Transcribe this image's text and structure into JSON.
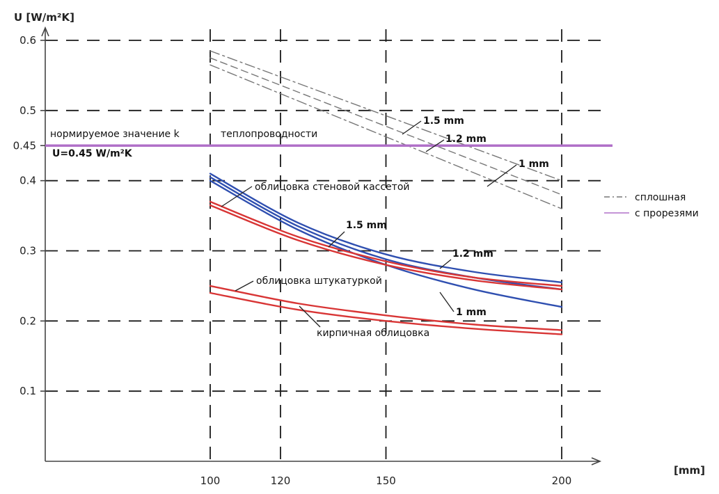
{
  "chart_data": {
    "type": "line",
    "title": "",
    "xlabel": "[mm]",
    "ylabel": "U [W/m²K]",
    "xlim": [
      0,
      200
    ],
    "ylim": [
      0,
      0.6
    ],
    "x_ticks": [
      100,
      120,
      150,
      200
    ],
    "y_ticks": [
      0.1,
      0.2,
      0.3,
      0.4,
      0.45,
      0.5,
      0.6
    ],
    "grid": true,
    "legend_position": "right",
    "legend": [
      {
        "label": "сплошная",
        "style": "dashed",
        "color": "#777777"
      },
      {
        "label": "с прорезями",
        "style": "solid",
        "color": "#b070c8"
      }
    ],
    "reference_line": {
      "y": 0.45,
      "color": "#b070c8",
      "label_top": "нормируемое значение k",
      "label_top_right": "теплопроводности",
      "label_bottom": "U=0.45 W/m²K"
    },
    "series": [
      {
        "x": [
          100,
          200
        ],
        "y": [
          0.585,
          0.4
        ],
        "color": "#777777",
        "dash": "14 5 3 5"
      },
      {
        "x": [
          100,
          200
        ],
        "y": [
          0.575,
          0.38
        ],
        "color": "#777777",
        "dash": "10 6"
      },
      {
        "x": [
          100,
          200
        ],
        "y": [
          0.565,
          0.36
        ],
        "color": "#777777",
        "dash": "14 5 3 5"
      },
      {
        "x": [
          100,
          125,
          150,
          175,
          200
        ],
        "y": [
          0.41,
          0.34,
          0.295,
          0.27,
          0.255
        ],
        "color": "#2f4fb0"
      },
      {
        "x": [
          100,
          125,
          150,
          175,
          200
        ],
        "y": [
          0.405,
          0.335,
          0.288,
          0.262,
          0.245
        ],
        "color": "#2f4fb0"
      },
      {
        "x": [
          100,
          125,
          150,
          175,
          200
        ],
        "y": [
          0.4,
          0.33,
          0.28,
          0.245,
          0.22
        ],
        "color": "#2f4fb0"
      },
      {
        "x": [
          100,
          125,
          150,
          175,
          200
        ],
        "y": [
          0.37,
          0.32,
          0.285,
          0.262,
          0.25
        ],
        "color": "#d83535"
      },
      {
        "x": [
          100,
          125,
          150,
          175,
          200
        ],
        "y": [
          0.365,
          0.315,
          0.28,
          0.258,
          0.245
        ],
        "color": "#d83535"
      },
      {
        "x": [
          100,
          125,
          150,
          175,
          200
        ],
        "y": [
          0.25,
          0.225,
          0.208,
          0.195,
          0.187
        ],
        "color": "#d83535"
      },
      {
        "x": [
          100,
          125,
          150,
          175,
          200
        ],
        "y": [
          0.24,
          0.216,
          0.2,
          0.189,
          0.181
        ],
        "color": "#d83535"
      }
    ],
    "annotations": {
      "gray_15": "1.5 mm",
      "gray_12": "1.2 mm",
      "gray_1": "1 mm",
      "blue_15": "1.5 mm",
      "blue_12": "1.2 mm",
      "blue_1": "1 mm",
      "wall_cassette": "облицовка стеновой кассетой",
      "plaster": "облицовка штукатуркой",
      "brick": "кирпичная облицовка"
    }
  }
}
